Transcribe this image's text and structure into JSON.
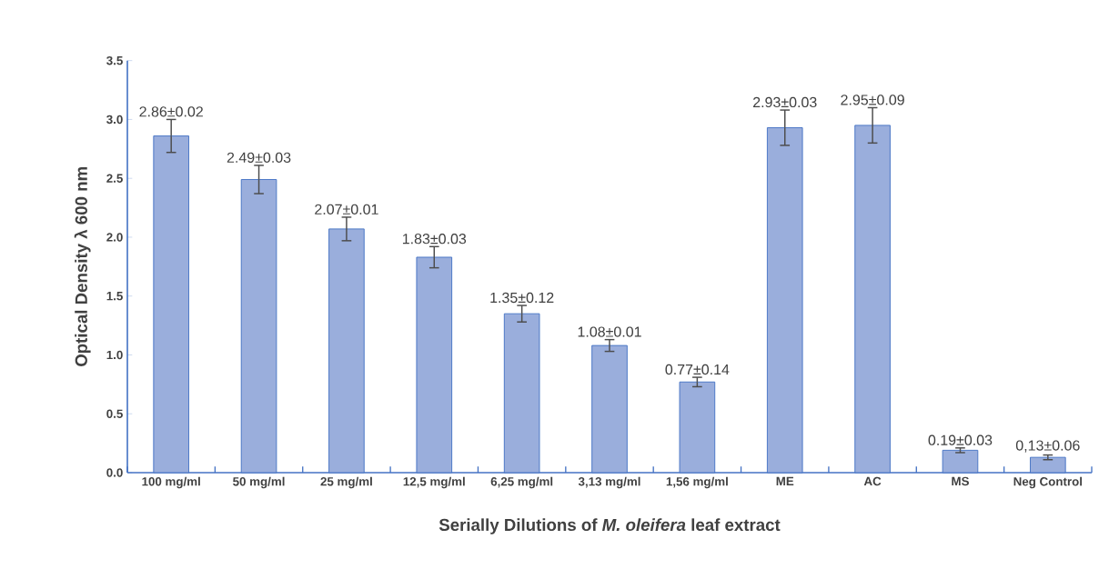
{
  "chart_data": {
    "type": "bar",
    "xlabel": "Serially Dilutions of *M. oleifera* leaf extract",
    "ylabel": "Optical Density λ 600 nm",
    "categories": [
      "100 mg/ml",
      "50 mg/ml",
      "25 mg/ml",
      "12,5 mg/ml",
      "6,25 mg/ml",
      "3,13 mg/ml",
      "1,56 mg/ml",
      "ME",
      "AC",
      "MS",
      "Neg Control"
    ],
    "values": [
      2.86,
      2.49,
      2.07,
      1.83,
      1.35,
      1.08,
      0.77,
      2.93,
      2.95,
      0.19,
      0.13
    ],
    "errors": [
      0.14,
      0.12,
      0.1,
      0.09,
      0.07,
      0.05,
      0.04,
      0.15,
      0.15,
      0.02,
      0.02
    ],
    "value_labels": [
      "2.86±0.02",
      "2.49±0.03",
      "2.07±0.01",
      "1.83±0.03",
      "1.35±0.12",
      "1.08±0.01",
      "0.77±0.14",
      "2.93±0.03",
      "2.95±0.09",
      "0.19±0.03",
      "0,13±0.06"
    ],
    "color": "#9aaedc",
    "ylim": [
      0,
      3.5
    ],
    "yticks": [
      {
        "value": 0,
        "label": "0.0"
      },
      0.5,
      {
        "value": 1,
        "label": "1.0"
      },
      1.5,
      {
        "value": 2,
        "label": "2.0"
      },
      2.5,
      {
        "value": 3,
        "label": "3.0"
      },
      3.5
    ],
    "grid": false
  }
}
